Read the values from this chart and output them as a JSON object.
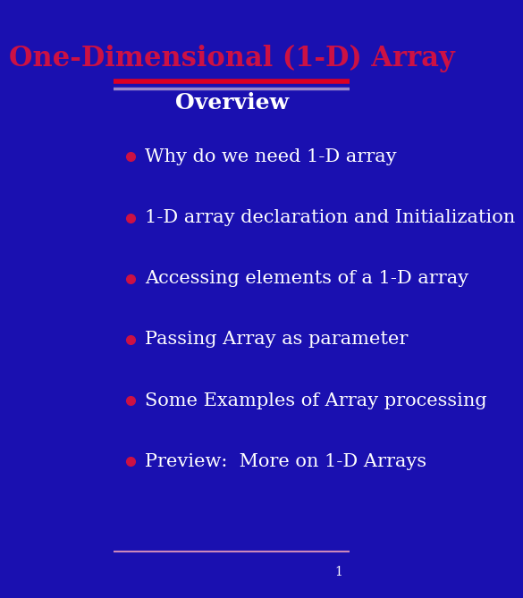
{
  "title": "One-Dimensional (1-D) Array",
  "subtitle": "Overview",
  "bg_color": "#1a10b0",
  "title_color": "#cc1144",
  "subtitle_color": "#ffffff",
  "bullet_color": "#ffffff",
  "bullet_dot_color": "#cc1144",
  "separator_red": "#dd0022",
  "separator_lavender": "#9988cc",
  "footer_separator": "#cc88bb",
  "page_number": "1",
  "page_number_color": "#ffffff",
  "bullets": [
    "Why do we need 1-D array",
    "1-D array declaration and Initialization",
    "Accessing elements of a 1-D array",
    "Passing Array as parameter",
    "Some Examples of Array processing",
    "Preview:  More on 1-D Arrays"
  ],
  "title_fontsize": 22,
  "subtitle_fontsize": 18,
  "bullet_fontsize": 15
}
